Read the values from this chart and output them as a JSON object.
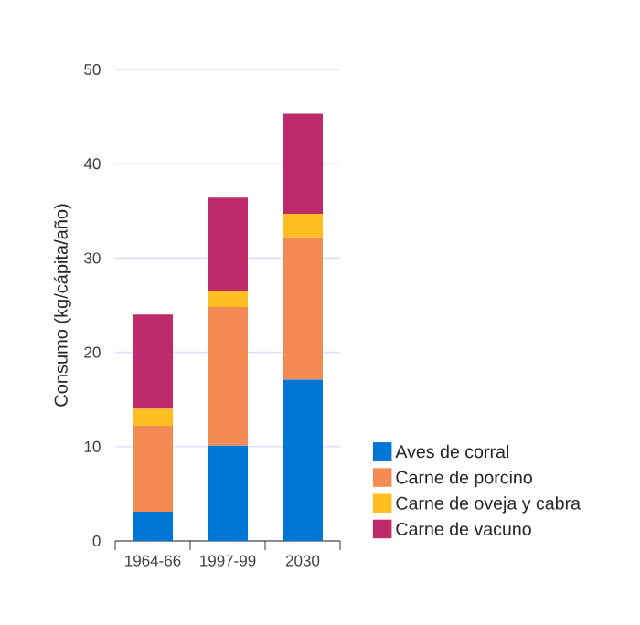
{
  "chart_data": {
    "type": "bar",
    "stacked": true,
    "ylabel": "Consumo (kg/cápita/año)",
    "categories": [
      "1964-66",
      "1997-99",
      "2030"
    ],
    "series": [
      {
        "name": "Aves de corral",
        "color": "#0077d4",
        "values": [
          3.1,
          10.1,
          17.1
        ]
      },
      {
        "name": "Carne de porcino",
        "color": "#f58b54",
        "values": [
          9.1,
          14.7,
          15.1
        ]
      },
      {
        "name": "Carne de oveja y cabra",
        "color": "#fdbf1f",
        "values": [
          1.8,
          1.7,
          2.5
        ]
      },
      {
        "name": "Carne de vacuno",
        "color": "#be2a6a",
        "values": [
          10.0,
          9.9,
          10.6
        ]
      }
    ],
    "ylim": [
      0,
      50
    ],
    "yticks": [
      0,
      10,
      20,
      30,
      40,
      50
    ],
    "grid": "y",
    "legend": "right"
  }
}
